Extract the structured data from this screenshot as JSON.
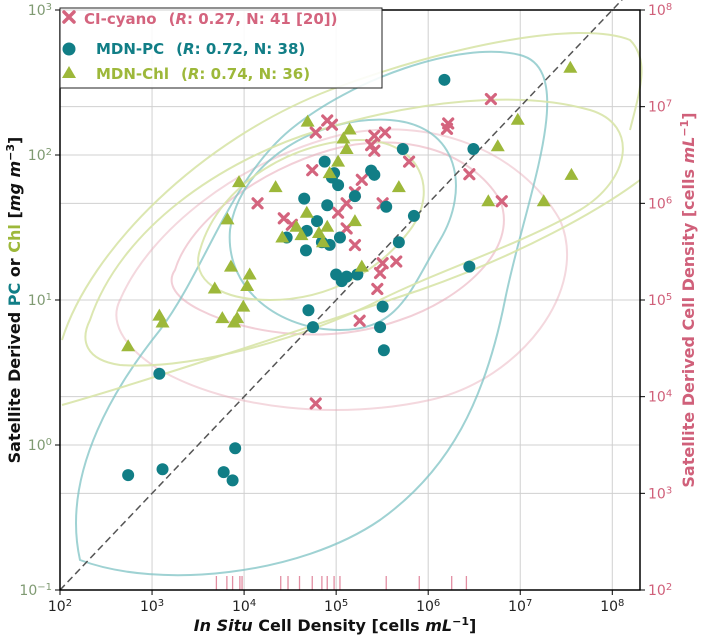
{
  "chart_data": {
    "type": "scatter",
    "title": "",
    "xlabel": {
      "italic": "In Situ",
      "rest": " Cell Density [cells ",
      "unit_italic": "mL",
      "sup": "−1",
      "close": "]"
    },
    "ylabel_left": {
      "prefix": "Satellite Derived ",
      "pc": "PC",
      "or": " or ",
      "chl": "Chl",
      "bracket": " [",
      "unit_italic": "mg m",
      "sup": "−3",
      "close": "]"
    },
    "ylabel_right": {
      "text": "Satellite Derived Cell Density [cells ",
      "unit_italic": "mL",
      "sup": "−1",
      "close": "]"
    },
    "x_scale": "log",
    "xlim": [
      100,
      200000000
    ],
    "y_scale": "log",
    "ylim": [
      0.1,
      1000
    ],
    "y2_scale": "log",
    "y2lim": [
      100,
      100000000
    ],
    "x_ticks": [
      {
        "base": "10",
        "exp": "2",
        "value": 100
      },
      {
        "base": "10",
        "exp": "3",
        "value": 1000
      },
      {
        "base": "10",
        "exp": "4",
        "value": 10000
      },
      {
        "base": "10",
        "exp": "5",
        "value": 100000
      },
      {
        "base": "10",
        "exp": "6",
        "value": 1000000
      },
      {
        "base": "10",
        "exp": "7",
        "value": 10000000
      },
      {
        "base": "10",
        "exp": "8",
        "value": 100000000
      }
    ],
    "y_ticks": [
      {
        "base": "10",
        "exp": "−1",
        "value": 0.1
      },
      {
        "base": "10",
        "exp": "0",
        "value": 1
      },
      {
        "base": "10",
        "exp": "1",
        "value": 10
      },
      {
        "base": "10",
        "exp": "2",
        "value": 100
      },
      {
        "base": "10",
        "exp": "3",
        "value": 1000
      }
    ],
    "y2_ticks": [
      {
        "base": "10",
        "exp": "2",
        "value": 100
      },
      {
        "base": "10",
        "exp": "3",
        "value": 1000
      },
      {
        "base": "10",
        "exp": "4",
        "value": 10000
      },
      {
        "base": "10",
        "exp": "5",
        "value": 100000
      },
      {
        "base": "10",
        "exp": "6",
        "value": 1000000
      },
      {
        "base": "10",
        "exp": "7",
        "value": 10000000
      },
      {
        "base": "10",
        "exp": "8",
        "value": 100000000
      }
    ],
    "grid": true,
    "one_to_one_line": true,
    "legend_position": "top-left",
    "colors": {
      "ci": "#d4647e",
      "pc": "#117e86",
      "chl": "#9db83a",
      "left_axis": "#7f9a72",
      "right_axis": "#d0607a"
    },
    "series": [
      {
        "name": "CI-cyano",
        "marker": "x",
        "axis": "right",
        "legend": {
          "label": "CI-cyano",
          "open": "(",
          "r_label": "R",
          "stats": ": 0.27, N: 41 [20])"
        },
        "points": [
          [
            14000,
            1000000
          ],
          [
            27000,
            700000
          ],
          [
            33000,
            600000
          ],
          [
            55000,
            2200000
          ],
          [
            60000,
            5400000
          ],
          [
            80000,
            7200000
          ],
          [
            90000,
            6500000
          ],
          [
            105000,
            800000
          ],
          [
            130000,
            550000
          ],
          [
            130000,
            1000000
          ],
          [
            160000,
            1300000
          ],
          [
            190000,
            1750000
          ],
          [
            240000,
            4000000
          ],
          [
            260000,
            3500000
          ],
          [
            280000,
            130000
          ],
          [
            300000,
            190000
          ],
          [
            320000,
            1000000
          ],
          [
            340000,
            5400000
          ],
          [
            450000,
            250000
          ],
          [
            620000,
            2700000
          ],
          [
            1600000,
            5900000
          ],
          [
            1650000,
            6700000
          ],
          [
            2800000,
            2000000
          ],
          [
            4800000,
            12000000
          ],
          [
            6300000,
            1050000
          ],
          [
            180000,
            61000
          ],
          [
            160000,
            370000
          ],
          [
            60000,
            8500
          ],
          [
            320000,
            240000
          ],
          [
            260000,
            5000000
          ]
        ],
        "rug_x": [
          5000,
          6500,
          7500,
          9000,
          9500,
          25000,
          30000,
          40000,
          55000,
          70000,
          80000,
          95000,
          110000,
          350000,
          800000,
          1800000,
          2600000
        ]
      },
      {
        "name": "MDN-PC",
        "marker": "circle",
        "axis": "left",
        "legend": {
          "label": "MDN-PC",
          "open": "(",
          "r_label": "R",
          "stats": ": 0.72, N: 38)"
        },
        "points": [
          [
            550,
            0.62
          ],
          [
            1200,
            3.1
          ],
          [
            1300,
            0.68
          ],
          [
            6000,
            0.65
          ],
          [
            7500,
            0.57
          ],
          [
            8000,
            0.95
          ],
          [
            29000,
            27
          ],
          [
            45000,
            50
          ],
          [
            47000,
            22
          ],
          [
            48000,
            30
          ],
          [
            50000,
            8.5
          ],
          [
            56000,
            6.5
          ],
          [
            62000,
            35
          ],
          [
            70000,
            25
          ],
          [
            80000,
            45
          ],
          [
            85000,
            24
          ],
          [
            90000,
            70
          ],
          [
            95000,
            75
          ],
          [
            100000,
            15
          ],
          [
            105000,
            62
          ],
          [
            110000,
            27
          ],
          [
            115000,
            13.5
          ],
          [
            130000,
            14.5
          ],
          [
            160000,
            52
          ],
          [
            170000,
            15
          ],
          [
            240000,
            78
          ],
          [
            300000,
            6.5
          ],
          [
            320000,
            9
          ],
          [
            330000,
            4.5
          ],
          [
            350000,
            44
          ],
          [
            480000,
            25
          ],
          [
            530000,
            110
          ],
          [
            700000,
            38
          ],
          [
            1500000,
            330
          ],
          [
            2800000,
            17
          ],
          [
            3100000,
            110
          ],
          [
            260000,
            73
          ],
          [
            75000,
            90
          ]
        ]
      },
      {
        "name": "MDN-Chl",
        "marker": "triangle",
        "axis": "left",
        "legend": {
          "label": "MDN-Chl",
          "open": "(",
          "r_label": "R",
          "stats": ": 0.74, N: 36)"
        },
        "points": [
          [
            550,
            4.8
          ],
          [
            1200,
            7.8
          ],
          [
            1300,
            7
          ],
          [
            4800,
            12
          ],
          [
            5800,
            7.5
          ],
          [
            6600,
            36
          ],
          [
            7200,
            17
          ],
          [
            7800,
            7
          ],
          [
            8400,
            7.5
          ],
          [
            8800,
            65
          ],
          [
            9800,
            9
          ],
          [
            10800,
            12.5
          ],
          [
            11500,
            15
          ],
          [
            22000,
            60
          ],
          [
            26000,
            27
          ],
          [
            37000,
            32
          ],
          [
            42000,
            28
          ],
          [
            48000,
            40
          ],
          [
            49000,
            170
          ],
          [
            65000,
            29
          ],
          [
            72000,
            25
          ],
          [
            80000,
            32
          ],
          [
            85000,
            75
          ],
          [
            105000,
            90
          ],
          [
            120000,
            130
          ],
          [
            140000,
            150
          ],
          [
            160000,
            35
          ],
          [
            190000,
            17
          ],
          [
            480000,
            60
          ],
          [
            4500000,
            48
          ],
          [
            5700000,
            115
          ],
          [
            9400000,
            175
          ],
          [
            18000000,
            48
          ],
          [
            35000000,
            400
          ],
          [
            36000000,
            73
          ],
          [
            130000,
            110
          ]
        ]
      }
    ]
  }
}
